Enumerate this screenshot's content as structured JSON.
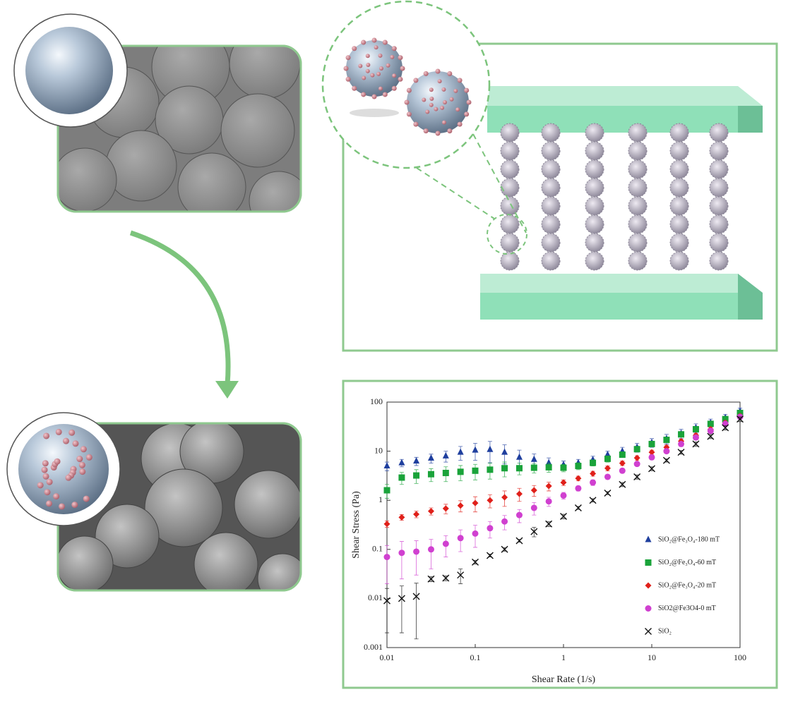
{
  "chart_data": {
    "type": "scatter",
    "log_x": true,
    "log_y": true,
    "x_label": "Shear Rate (1/s)",
    "y_label": "Shear Stress (Pa)",
    "xlim": [
      0.01,
      100
    ],
    "ylim": [
      0.001,
      100
    ],
    "xticks": [
      0.01,
      0.1,
      1,
      10,
      100
    ],
    "yticks": [
      0.001,
      0.01,
      0.1,
      1,
      10,
      100
    ],
    "legend": "right",
    "x": [
      0.01,
      0.0147,
      0.0215,
      0.0316,
      0.0464,
      0.0681,
      0.1,
      0.147,
      0.215,
      0.316,
      0.464,
      0.681,
      1,
      1.47,
      2.15,
      3.16,
      4.64,
      6.81,
      10,
      14.7,
      21.5,
      31.6,
      46.4,
      68.1,
      100
    ],
    "series": [
      {
        "name": "SiO₂@Fe₃O₄-180 mT",
        "color": "#1f3f9e",
        "marker": "triangle",
        "values": [
          5.0,
          5.8,
          6.3,
          7.2,
          8.0,
          9.5,
          10.5,
          10.8,
          9.5,
          7.5,
          6.8,
          5.8,
          5.3,
          5.8,
          6.7,
          8.5,
          10,
          12,
          15,
          18,
          23,
          30,
          38,
          48,
          65
        ],
        "errors": [
          1,
          1,
          1.2,
          1.5,
          2,
          3,
          4,
          5,
          4,
          3,
          2,
          1.5,
          1,
          1,
          1.2,
          1.5,
          2,
          2.5,
          3,
          4,
          5,
          6,
          7,
          8,
          10
        ]
      },
      {
        "name": "SiO₂@Fe₃O₄-60 mT",
        "color": "#1aa33a",
        "marker": "square",
        "values": [
          1.6,
          2.9,
          3.2,
          3.4,
          3.6,
          3.8,
          4.0,
          4.2,
          4.5,
          4.5,
          4.6,
          4.7,
          4.6,
          5.0,
          5.8,
          7.0,
          8.5,
          11,
          14,
          17,
          22,
          28,
          36,
          45,
          60
        ],
        "errors": [
          0.5,
          0.8,
          1,
          1,
          1.2,
          1.3,
          1.4,
          1.5,
          1.5,
          1.2,
          1,
          1,
          0.8,
          0.8,
          0.8,
          1,
          1,
          1.2,
          1.5,
          2,
          2.5,
          3,
          4,
          5,
          6
        ]
      },
      {
        "name": "SiO₂@Fe₃O₄-20 mT",
        "color": "#e0201a",
        "marker": "diamond",
        "values": [
          0.33,
          0.45,
          0.52,
          0.6,
          0.68,
          0.78,
          0.88,
          1.0,
          1.15,
          1.35,
          1.6,
          1.95,
          2.3,
          2.8,
          3.5,
          4.5,
          5.7,
          7.3,
          9.5,
          12,
          16,
          21,
          28,
          38,
          52
        ],
        "errors": [
          0.05,
          0.06,
          0.08,
          0.1,
          0.15,
          0.2,
          0.3,
          0.3,
          0.4,
          0.4,
          0.4,
          0.4,
          0.3,
          0.3,
          0.4,
          0.5,
          0.6,
          0.8,
          1,
          1.2,
          1.5,
          2,
          3,
          4,
          5
        ]
      },
      {
        "name": "SiO2@Fe3O4-0 mT",
        "color": "#d040d0",
        "marker": "circle",
        "values": [
          0.07,
          0.085,
          0.09,
          0.1,
          0.13,
          0.17,
          0.21,
          0.27,
          0.37,
          0.5,
          0.7,
          0.95,
          1.25,
          1.75,
          2.3,
          3.0,
          4.0,
          5.5,
          7.5,
          10,
          14,
          19,
          26,
          36,
          50
        ],
        "errors": [
          0.05,
          0.06,
          0.06,
          0.06,
          0.06,
          0.08,
          0.1,
          0.1,
          0.12,
          0.15,
          0.2,
          0.2,
          0.2,
          0.2,
          0.3,
          0.3,
          0.4,
          0.5,
          0.8,
          1,
          1.5,
          2,
          3,
          4,
          5
        ]
      },
      {
        "name": "SiO₂",
        "color": "#111111",
        "marker": "x",
        "values": [
          0.009,
          0.01,
          0.011,
          0.025,
          0.026,
          0.03,
          0.055,
          0.075,
          0.1,
          0.15,
          0.23,
          0.33,
          0.47,
          0.7,
          1.0,
          1.4,
          2.1,
          3.0,
          4.4,
          6.5,
          9.5,
          14,
          20,
          30,
          45
        ],
        "errors": [
          0.007,
          0.008,
          0.0095,
          0.003,
          0.003,
          0.01,
          0.005,
          0.005,
          0.008,
          0.01,
          0.05,
          0.04,
          0.05,
          0.05,
          0.08,
          0.1,
          0.2,
          0.3,
          0.4,
          0.5,
          0.8,
          1.5,
          2,
          3,
          5
        ]
      }
    ]
  }
}
